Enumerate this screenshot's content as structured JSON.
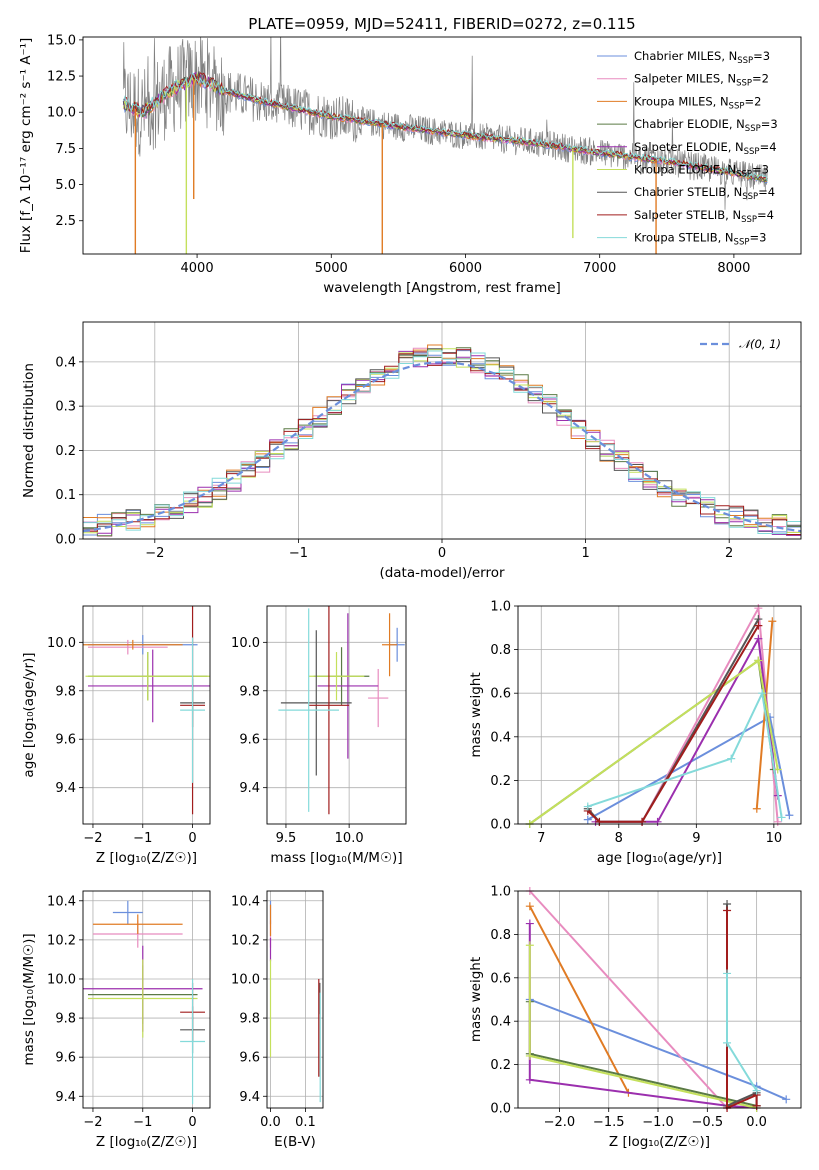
{
  "colors": {
    "chabrier_miles": "#6b8fdc",
    "salpeter_miles": "#e88cbf",
    "kroupa_miles": "#e07b24",
    "chabrier_elodie": "#5a7a45",
    "salpeter_elodie": "#9b2fae",
    "kroupa_elodie": "#c4e05c",
    "chabrier_stelib": "#555555",
    "salpeter_stelib": "#a11d1d",
    "kroupa_stelib": "#84dada",
    "data": "#808080",
    "normal": "#6b8fdc",
    "grid": "#b0b0b0"
  },
  "chart_data": [
    {
      "id": "spectrum",
      "type": "line",
      "title": "PLATE=0959, MJD=52411, FIBERID=0272, z=0.115",
      "xlabel": "wavelength [Angstrom, rest frame]",
      "ylabel": "Flux [f_λ 10⁻¹⁷ erg cm⁻² s⁻¹ A⁻¹]",
      "xlim": [
        3150,
        8500
      ],
      "ylim": [
        0.2,
        15.2
      ],
      "xticks": [
        4000,
        5000,
        6000,
        7000,
        8000
      ],
      "yticks": [
        2.5,
        5.0,
        7.5,
        10.0,
        12.5,
        15.0
      ],
      "ytick_labels": [
        "2.5",
        "5.0",
        "7.5",
        "10.0",
        "12.5",
        "15.0"
      ],
      "grid": false,
      "legend_position": "top-right",
      "legend": [
        {
          "main": "Chabrier MILES, N",
          "sub": "SSP",
          "suffix": "=3",
          "color": "chabrier_miles"
        },
        {
          "main": "Salpeter MILES, N",
          "sub": "SSP",
          "suffix": "=2",
          "color": "salpeter_miles"
        },
        {
          "main": "Kroupa MILES, N",
          "sub": "SSP",
          "suffix": "=2",
          "color": "kroupa_miles"
        },
        {
          "main": "Chabrier ELODIE, N",
          "sub": "SSP",
          "suffix": "=3",
          "color": "chabrier_elodie"
        },
        {
          "main": "Salpeter ELODIE, N",
          "sub": "SSP",
          "suffix": "=4",
          "color": "salpeter_elodie"
        },
        {
          "main": "Kroupa ELODIE, N",
          "sub": "SSP",
          "suffix": "=3",
          "color": "kroupa_elodie"
        },
        {
          "main": "Chabrier STELIB, N",
          "sub": "SSP",
          "suffix": "=4",
          "color": "chabrier_stelib"
        },
        {
          "main": "Salpeter STELIB, N",
          "sub": "SSP",
          "suffix": "=4",
          "color": "salpeter_stelib"
        },
        {
          "main": "Kroupa STELIB, N",
          "sub": "SSP",
          "suffix": "=3",
          "color": "kroupa_stelib"
        }
      ],
      "continuum": {
        "x": [
          3450,
          3600,
          3800,
          4000,
          4200,
          4500,
          5000,
          5500,
          6000,
          6500,
          7000,
          7500,
          8000,
          8250
        ],
        "y": [
          10.6,
          10.0,
          11.5,
          12.4,
          11.5,
          10.7,
          9.7,
          9.0,
          8.4,
          7.9,
          7.2,
          6.6,
          5.8,
          5.3
        ]
      },
      "model_drops": [
        {
          "series": "kroupa_miles",
          "x": 3540,
          "y": 0.2
        },
        {
          "series": "kroupa_elodie",
          "x": 3920,
          "y": 0.2
        },
        {
          "series": "kroupa_miles",
          "x": 3975,
          "y": 4.0
        },
        {
          "series": "kroupa_miles",
          "x": 5380,
          "y": 0.2
        },
        {
          "series": "kroupa_elodie",
          "x": 6800,
          "y": 1.3
        },
        {
          "series": "kroupa_miles",
          "x": 7420,
          "y": 0.2
        }
      ]
    },
    {
      "id": "residuals",
      "type": "line",
      "xlabel": "(data-model)/error",
      "ylabel": "Normed distribution",
      "xlim": [
        -2.5,
        2.5
      ],
      "ylim": [
        0,
        0.49
      ],
      "xticks": [
        -2,
        -1,
        0,
        1,
        2
      ],
      "xtick_labels": [
        "−2",
        "−1",
        "0",
        "1",
        "2"
      ],
      "yticks": [
        0.0,
        0.1,
        0.2,
        0.3,
        0.4
      ],
      "ytick_labels": [
        "0.0",
        "0.1",
        "0.2",
        "0.3",
        "0.4"
      ],
      "grid": true,
      "legend_position": "top-right",
      "legend_label": "𝒩(0, 1)",
      "gaussian": {
        "mean": 0,
        "sigma": 1
      },
      "histogram_bin_width": 0.1
    },
    {
      "id": "age_vs_z",
      "type": "scatter",
      "xlabel": "Z [log₁₀(Z/Z☉)]",
      "ylabel": "age  [log₁₀(age/yr)]",
      "xlim": [
        -2.2,
        0.35
      ],
      "ylim": [
        9.25,
        10.15
      ],
      "xticks": [
        -2,
        -1,
        0
      ],
      "xtick_labels": [
        "−2",
        "−1",
        "0"
      ],
      "yticks": [
        9.4,
        9.6,
        9.8,
        10.0
      ],
      "ytick_labels": [
        "9.4",
        "9.6",
        "9.8",
        "10.0"
      ],
      "grid": true,
      "points": [
        {
          "series": "chabrier_miles",
          "x": -1.0,
          "y": 9.99,
          "xerr": 1.1,
          "yerr": 0.04
        },
        {
          "series": "salpeter_miles",
          "x": -1.3,
          "y": 9.98,
          "xerr": 0.8,
          "yerr": 0.03
        },
        {
          "series": "kroupa_miles",
          "x": -1.2,
          "y": 9.99,
          "xerr": 1.0,
          "yerr": 0.02
        },
        {
          "series": "chabrier_elodie",
          "x": -0.9,
          "y": 9.86,
          "xerr": 1.2,
          "yerr": 0.1
        },
        {
          "series": "salpeter_elodie",
          "x": -0.8,
          "y": 9.82,
          "xerr": 1.3,
          "yerr": 0.15
        },
        {
          "series": "kroupa_elodie",
          "x": -0.9,
          "y": 9.86,
          "xerr": 1.25,
          "yerr": 0.1
        },
        {
          "series": "chabrier_stelib",
          "x": 0.0,
          "y": 9.75,
          "xerr": 0.25,
          "yerr": 0.1
        },
        {
          "series": "salpeter_stelib",
          "x": 0.0,
          "y": 9.74,
          "xerr": 0.25,
          "yerr": 0.45
        },
        {
          "series": "kroupa_stelib",
          "x": 0.0,
          "y": 9.72,
          "xerr": 0.25,
          "yerr": 0.3
        }
      ]
    },
    {
      "id": "age_vs_mass",
      "type": "scatter",
      "xlabel": "mass [log₁₀(M/M☉)]",
      "ylabel": "",
      "xlim": [
        9.35,
        10.45
      ],
      "ylim": [
        9.25,
        10.15
      ],
      "xticks": [
        9.5,
        10.0
      ],
      "xtick_labels": [
        "9.5",
        "10.0"
      ],
      "yticks": [
        9.4,
        9.6,
        9.8,
        10.0
      ],
      "ytick_labels": [
        "9.4",
        "9.6",
        "9.8",
        "10.0"
      ],
      "grid": true,
      "points": [
        {
          "series": "chabrier_miles",
          "x": 10.38,
          "y": 9.99,
          "xerr": 0.06,
          "yerr": 0.07
        },
        {
          "series": "salpeter_miles",
          "x": 10.23,
          "y": 9.77,
          "xerr": 0.08,
          "yerr": 0.12
        },
        {
          "series": "kroupa_miles",
          "x": 10.32,
          "y": 9.99,
          "xerr": 0.06,
          "yerr": 0.13
        },
        {
          "series": "chabrier_elodie",
          "x": 9.94,
          "y": 9.86,
          "xerr": 0.22,
          "yerr": 0.12
        },
        {
          "series": "salpeter_elodie",
          "x": 9.99,
          "y": 9.82,
          "xerr": 0.24,
          "yerr": 0.3
        },
        {
          "series": "kroupa_elodie",
          "x": 9.9,
          "y": 9.86,
          "xerr": 0.22,
          "yerr": 0.1
        },
        {
          "series": "chabrier_stelib",
          "x": 9.74,
          "y": 9.75,
          "xerr": 0.28,
          "yerr": 0.3
        },
        {
          "series": "salpeter_stelib",
          "x": 9.84,
          "y": 9.74,
          "xerr": 0.16,
          "yerr": 0.45
        },
        {
          "series": "kroupa_stelib",
          "x": 9.68,
          "y": 9.72,
          "xerr": 0.24,
          "yerr": 0.42
        }
      ]
    },
    {
      "id": "weight_vs_age",
      "type": "line",
      "xlabel": "age  [log₁₀(age/yr)]",
      "ylabel": "mass weight",
      "xlim": [
        6.7,
        10.35
      ],
      "ylim": [
        0,
        1.0
      ],
      "xticks": [
        7,
        8,
        9,
        10
      ],
      "xtick_labels": [
        "7",
        "8",
        "9",
        "10"
      ],
      "yticks": [
        0.0,
        0.2,
        0.4,
        0.6,
        0.8,
        1.0
      ],
      "ytick_labels": [
        "0.0",
        "0.2",
        "0.4",
        "0.6",
        "0.8",
        "1.0"
      ],
      "grid": true,
      "series": [
        {
          "name": "chabrier_miles",
          "x": [
            7.6,
            9.95,
            10.2
          ],
          "y": [
            0.02,
            0.49,
            0.04
          ]
        },
        {
          "name": "salpeter_miles",
          "x": [
            8.3,
            9.8,
            10.05
          ],
          "y": [
            0.01,
            0.99,
            0.01
          ]
        },
        {
          "name": "kroupa_miles",
          "x": [
            9.78,
            9.98
          ],
          "y": [
            0.07,
            0.93
          ]
        },
        {
          "name": "chabrier_elodie",
          "x": [
            6.85,
            9.8,
            10.0
          ],
          "y": [
            0.0,
            0.75,
            0.25
          ]
        },
        {
          "name": "salpeter_elodie",
          "x": [
            7.7,
            8.5,
            9.8,
            10.05
          ],
          "y": [
            0.01,
            0.01,
            0.85,
            0.13
          ]
        },
        {
          "name": "kroupa_elodie",
          "x": [
            6.85,
            9.8,
            10.05
          ],
          "y": [
            0.0,
            0.75,
            0.25
          ]
        },
        {
          "name": "chabrier_stelib",
          "x": [
            7.6,
            7.75,
            8.3,
            9.8
          ],
          "y": [
            0.07,
            0.01,
            0.01,
            0.94
          ]
        },
        {
          "name": "salpeter_stelib",
          "x": [
            7.6,
            7.75,
            8.3,
            9.8
          ],
          "y": [
            0.06,
            0.01,
            0.01,
            0.91
          ]
        },
        {
          "name": "kroupa_stelib",
          "x": [
            7.6,
            9.45,
            9.85,
            10.1
          ],
          "y": [
            0.08,
            0.3,
            0.6,
            0.03
          ]
        }
      ]
    },
    {
      "id": "mass_vs_z",
      "type": "scatter",
      "xlabel": "Z [log₁₀(Z/Z☉)]",
      "ylabel": "mass [log₁₀(M/M☉)]",
      "xlim": [
        -2.2,
        0.35
      ],
      "ylim": [
        9.34,
        10.45
      ],
      "xticks": [
        -2,
        -1,
        0
      ],
      "xtick_labels": [
        "−2",
        "−1",
        "0"
      ],
      "yticks": [
        9.4,
        9.6,
        9.8,
        10.0,
        10.2,
        10.4
      ],
      "ytick_labels": [
        "9.4",
        "9.6",
        "9.8",
        "10.0",
        "10.2",
        "10.4"
      ],
      "grid": true,
      "points": [
        {
          "series": "chabrier_miles",
          "x": -1.3,
          "y": 10.34,
          "xerr": 0.3,
          "yerr": 0.06
        },
        {
          "series": "salpeter_miles",
          "x": -1.1,
          "y": 10.23,
          "xerr": 0.9,
          "yerr": 0.07
        },
        {
          "series": "kroupa_miles",
          "x": -1.1,
          "y": 10.28,
          "xerr": 0.9,
          "yerr": 0.05
        },
        {
          "series": "chabrier_elodie",
          "x": -1.0,
          "y": 9.92,
          "xerr": 1.1,
          "yerr": 0.15
        },
        {
          "series": "salpeter_elodie",
          "x": -1.0,
          "y": 9.95,
          "xerr": 1.2,
          "yerr": 0.22
        },
        {
          "series": "kroupa_elodie",
          "x": -1.0,
          "y": 9.9,
          "xerr": 1.1,
          "yerr": 0.2
        },
        {
          "series": "chabrier_stelib",
          "x": 0.0,
          "y": 9.74,
          "xerr": 0.25,
          "yerr": 0.12
        },
        {
          "series": "salpeter_stelib",
          "x": 0.0,
          "y": 9.83,
          "xerr": 0.25,
          "yerr": 0.15
        },
        {
          "series": "kroupa_stelib",
          "x": 0.0,
          "y": 9.68,
          "xerr": 0.25,
          "yerr": 0.32
        }
      ]
    },
    {
      "id": "mass_vs_ebv",
      "type": "scatter",
      "xlabel": "E(B-V)",
      "ylabel": "",
      "xlim": [
        -0.01,
        0.15
      ],
      "ylim": [
        9.34,
        10.45
      ],
      "xticks": [
        0.0,
        0.1
      ],
      "xtick_labels": [
        "0.0",
        "0.1"
      ],
      "yticks": [
        9.4,
        9.6,
        9.8,
        10.0,
        10.2,
        10.4
      ],
      "ytick_labels": [
        "9.4",
        "9.6",
        "9.8",
        "10.0",
        "10.2",
        "10.4"
      ],
      "grid": true,
      "points": [
        {
          "series": "chabrier_miles",
          "x": 0.0,
          "y": 10.34,
          "xerr": 0.0,
          "yerr": 0.06
        },
        {
          "series": "salpeter_miles",
          "x": 0.0,
          "y": 10.23,
          "xerr": 0.0,
          "yerr": 0.07
        },
        {
          "series": "kroupa_miles",
          "x": 0.0,
          "y": 10.3,
          "xerr": 0.0,
          "yerr": 0.08
        },
        {
          "series": "salpeter_elodie",
          "x": 0.0,
          "y": 10.15,
          "xerr": 0.0,
          "yerr": 0.06
        },
        {
          "series": "kroupa_elodie",
          "x": 0.0,
          "y": 9.85,
          "xerr": 0.0,
          "yerr": 0.25
        },
        {
          "series": "chabrier_stelib",
          "x": 0.141,
          "y": 9.9,
          "xerr": 0.0,
          "yerr": 0.08
        },
        {
          "series": "salpeter_stelib",
          "x": 0.138,
          "y": 9.75,
          "xerr": 0.0,
          "yerr": 0.25
        },
        {
          "series": "kroupa_stelib",
          "x": 0.142,
          "y": 9.65,
          "xerr": 0.0,
          "yerr": 0.28
        }
      ]
    },
    {
      "id": "weight_vs_z",
      "type": "line",
      "xlabel": "Z [log₁₀(Z/Z☉)]",
      "ylabel": "mass weight",
      "xlim": [
        -2.42,
        0.45
      ],
      "ylim": [
        0,
        1.0
      ],
      "xticks": [
        -2.0,
        -1.5,
        -1.0,
        -0.5,
        0.0
      ],
      "xtick_labels": [
        "−2.0",
        "−1.5",
        "−1.0",
        "−0.5",
        "0.0"
      ],
      "yticks": [
        0.0,
        0.2,
        0.4,
        0.6,
        0.8,
        1.0
      ],
      "ytick_labels": [
        "0.0",
        "0.2",
        "0.4",
        "0.6",
        "0.8",
        "1.0"
      ],
      "grid": true,
      "series": [
        {
          "name": "chabrier_miles",
          "x": [
            -2.3,
            0.0,
            0.3
          ],
          "y": [
            0.5,
            0.1,
            0.04
          ]
        },
        {
          "name": "salpeter_miles",
          "x": [
            -2.3,
            -0.3,
            0.0
          ],
          "y": [
            1.0,
            0.0,
            0.01
          ]
        },
        {
          "name": "kroupa_miles",
          "x": [
            -2.3,
            -1.3
          ],
          "y": [
            0.93,
            0.07
          ]
        },
        {
          "name": "chabrier_elodie",
          "x": [
            -2.3,
            -2.3,
            0.0
          ],
          "y": [
            0.49,
            0.25,
            0.01
          ]
        },
        {
          "name": "salpeter_elodie",
          "x": [
            -2.3,
            -2.3,
            -0.3,
            0.0
          ],
          "y": [
            0.85,
            0.13,
            0.01,
            0.0
          ]
        },
        {
          "name": "kroupa_elodie",
          "x": [
            -2.3,
            -2.3,
            0.0
          ],
          "y": [
            0.75,
            0.24,
            0.0
          ]
        },
        {
          "name": "chabrier_stelib",
          "x": [
            -0.3,
            -0.3,
            0.0,
            0.0
          ],
          "y": [
            0.94,
            0.01,
            0.07,
            0.01
          ]
        },
        {
          "name": "salpeter_stelib",
          "x": [
            -0.3,
            -0.3,
            0.0,
            0.0
          ],
          "y": [
            0.91,
            0.0,
            0.06,
            0.01
          ]
        },
        {
          "name": "kroupa_stelib",
          "x": [
            -0.3,
            -0.3,
            0.0
          ],
          "y": [
            0.62,
            0.3,
            0.08
          ]
        }
      ]
    }
  ]
}
